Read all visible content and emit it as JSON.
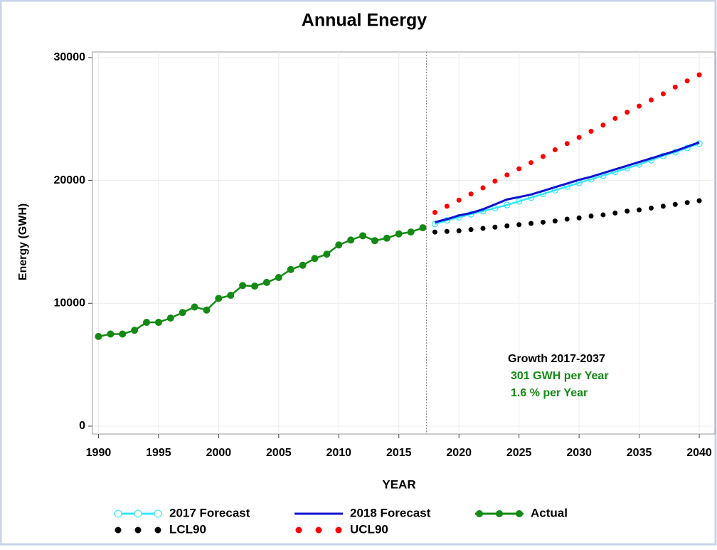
{
  "chart_data": {
    "type": "line",
    "title": "Annual Energy",
    "xlabel": "YEAR",
    "ylabel": "Energy (GWH)",
    "x": [
      1990,
      1991,
      1992,
      1993,
      1994,
      1995,
      1996,
      1997,
      1998,
      1999,
      2000,
      2001,
      2002,
      2003,
      2004,
      2005,
      2006,
      2007,
      2008,
      2009,
      2010,
      2011,
      2012,
      2013,
      2014,
      2015,
      2016,
      2017,
      2018,
      2019,
      2020,
      2021,
      2022,
      2023,
      2024,
      2025,
      2026,
      2027,
      2028,
      2029,
      2030,
      2031,
      2032,
      2033,
      2034,
      2035,
      2036,
      2037,
      2038,
      2039,
      2040
    ],
    "xlim": [
      1989.5,
      2041.3
    ],
    "ylim": [
      -640,
      30460
    ],
    "xticks": [
      1990,
      1995,
      2000,
      2005,
      2010,
      2015,
      2020,
      2025,
      2030,
      2035,
      2040
    ],
    "yticks": [
      0,
      10000,
      20000,
      30000
    ],
    "grid": true,
    "reference_line_x": 2017.3,
    "legend_position": "bottom",
    "series": [
      {
        "name": "2017 Forecast",
        "color": "#33e6ff",
        "style": "line-hollow-markers",
        "values": [
          null,
          null,
          null,
          null,
          null,
          null,
          null,
          null,
          null,
          null,
          null,
          null,
          null,
          null,
          null,
          null,
          null,
          null,
          null,
          null,
          null,
          null,
          null,
          null,
          null,
          null,
          null,
          null,
          16450,
          16750,
          17000,
          17250,
          17500,
          17750,
          18000,
          18300,
          18600,
          18900,
          19200,
          19500,
          19800,
          20100,
          20400,
          20700,
          21000,
          21300,
          21650,
          22000,
          22300,
          22650,
          23000
        ]
      },
      {
        "name": "2018 Forecast",
        "color": "#1010d0",
        "style": "line",
        "values": [
          null,
          null,
          null,
          null,
          null,
          null,
          null,
          null,
          null,
          null,
          null,
          null,
          null,
          null,
          null,
          null,
          null,
          null,
          null,
          null,
          null,
          null,
          null,
          null,
          null,
          null,
          null,
          null,
          16600,
          16850,
          17150,
          17350,
          17650,
          18050,
          18450,
          18650,
          18850,
          19150,
          19450,
          19750,
          20050,
          20300,
          20600,
          20900,
          21200,
          21500,
          21800,
          22100,
          22400,
          22750,
          23100
        ]
      },
      {
        "name": "Actual",
        "color": "#138a13",
        "style": "line-markers",
        "values": [
          7300,
          7500,
          7500,
          7800,
          8450,
          8450,
          8800,
          9250,
          9700,
          9450,
          10400,
          10650,
          11450,
          11400,
          11700,
          12100,
          12750,
          13100,
          13650,
          14000,
          14750,
          15150,
          15500,
          15100,
          15300,
          15650,
          15800,
          16150,
          null,
          null,
          null,
          null,
          null,
          null,
          null,
          null,
          null,
          null,
          null,
          null,
          null,
          null,
          null,
          null,
          null,
          null,
          null,
          null,
          null,
          null,
          null
        ]
      },
      {
        "name": "LCL90",
        "color": "#000000",
        "style": "dots",
        "values": [
          null,
          null,
          null,
          null,
          null,
          null,
          null,
          null,
          null,
          null,
          null,
          null,
          null,
          null,
          null,
          null,
          null,
          null,
          null,
          null,
          null,
          null,
          null,
          null,
          null,
          null,
          null,
          null,
          15800,
          15850,
          15900,
          16000,
          16100,
          16200,
          16300,
          16400,
          16500,
          16600,
          16700,
          16850,
          16950,
          17100,
          17200,
          17350,
          17500,
          17600,
          17750,
          17900,
          18050,
          18200,
          18350
        ]
      },
      {
        "name": "UCL90",
        "color": "#ff0000",
        "style": "dots",
        "values": [
          null,
          null,
          null,
          null,
          null,
          null,
          null,
          null,
          null,
          null,
          null,
          null,
          null,
          null,
          null,
          null,
          null,
          null,
          null,
          null,
          null,
          null,
          null,
          null,
          null,
          null,
          null,
          null,
          17400,
          17900,
          18400,
          18900,
          19400,
          19950,
          20450,
          20950,
          21450,
          21950,
          22500,
          23000,
          23500,
          24000,
          24500,
          25050,
          25550,
          26050,
          26550,
          27050,
          27600,
          28100,
          28600
        ]
      }
    ],
    "annotations": [
      {
        "text": "Growth 2017-2037",
        "color": "#000000"
      },
      {
        "text": "301 GWH per Year",
        "color": "#138a13"
      },
      {
        "text": "1.6 % per Year",
        "color": "#138a13"
      }
    ]
  }
}
